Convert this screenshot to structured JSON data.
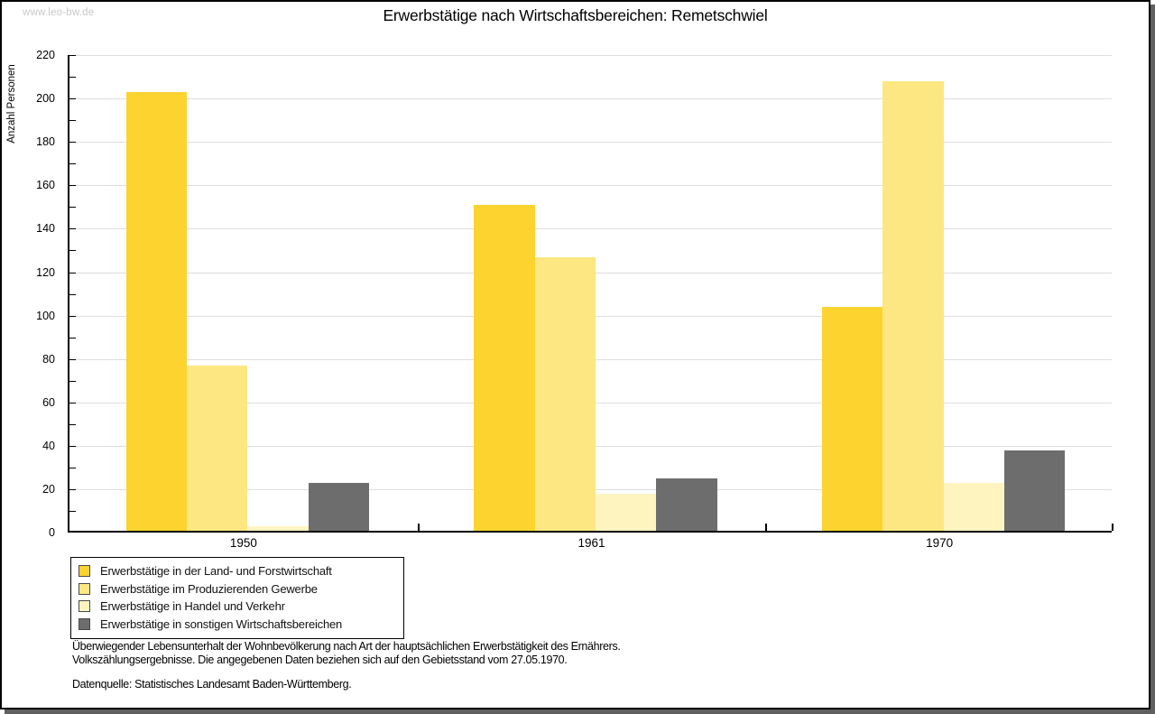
{
  "watermark": "www.leo-bw.de",
  "title": "Erwerbstätige nach Wirtschaftsbereichen: Remetschwiel",
  "chart_data": {
    "type": "bar",
    "title": "Erwerbstätige nach Wirtschaftsbereichen: Remetschwiel",
    "xlabel": "",
    "ylabel": "Anzahl Personen",
    "categories": [
      "1950",
      "1961",
      "1970"
    ],
    "series": [
      {
        "name": "Erwerbstätige in der Land- und Forstwirtschaft",
        "color": "#fcd32f",
        "values": [
          202,
          150,
          103
        ]
      },
      {
        "name": "Erwerbstätige im Produzierenden Gewerbe",
        "color": "#fce782",
        "values": [
          76,
          126,
          207
        ]
      },
      {
        "name": "Erwerbstätige in Handel und Verkehr",
        "color": "#fdf4c0",
        "values": [
          2,
          17,
          22
        ]
      },
      {
        "name": "Erwerbstätige in sonstigen Wirtschaftsbereichen",
        "color": "#6d6d6d",
        "values": [
          22,
          24,
          37
        ]
      }
    ],
    "ylim": [
      0,
      220
    ],
    "ytick_step": 20,
    "yminor_step": 10,
    "grid": true,
    "legend_position": "bottom-left",
    "gridline_color": "#dedede"
  },
  "footnotes": {
    "line1": "Überwiegender Lebensunterhalt der Wohnbevölkerung nach Art der hauptsächlichen Erwerbstätigkeit des Ernährers.",
    "line2": "Volkszählungsergebnisse. Die angegebenen Daten beziehen sich auf den Gebietsstand vom 27.05.1970.",
    "source": "Datenquelle: Statistisches Landesamt Baden-Württemberg."
  }
}
